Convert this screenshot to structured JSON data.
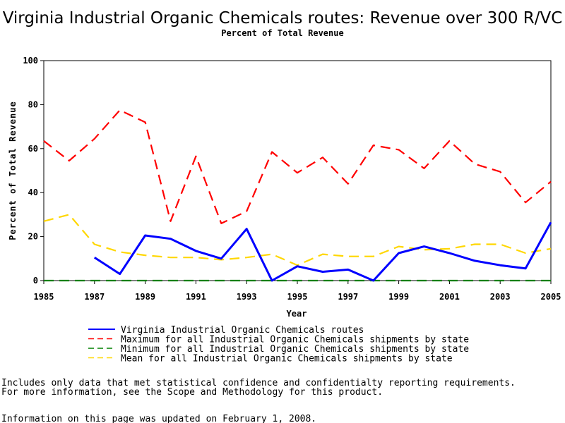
{
  "chart_data": {
    "type": "line",
    "title": "Virginia Industrial Organic Chemicals routes: Revenue over 300 R/VC",
    "subtitle": "Percent of Total Revenue",
    "xlabel": "Year",
    "ylabel": "Percent of Total Revenue",
    "xlim": [
      1985,
      2005
    ],
    "ylim": [
      0,
      100
    ],
    "x_ticks": [
      "1985",
      "1987",
      "1989",
      "1991",
      "1993",
      "1995",
      "1997",
      "1999",
      "2001",
      "2003",
      "2005"
    ],
    "y_ticks": [
      "0",
      "20",
      "40",
      "60",
      "80",
      "100"
    ],
    "grid": false,
    "legend_position": "bottom",
    "series": [
      {
        "name": "Virginia Industrial Organic Chemicals routes",
        "color": "#0000ff",
        "dash": "solid",
        "x": [
          1987,
          1988,
          1989,
          1990,
          1991,
          1992,
          1993,
          1994,
          1995,
          1996,
          1997,
          1998,
          1999,
          2000,
          2001,
          2002,
          2003,
          2004,
          2005
        ],
        "values": [
          10.5,
          3,
          20.5,
          19,
          13.5,
          10,
          23.5,
          0,
          6.5,
          4,
          5,
          0,
          12.5,
          15.5,
          12.5,
          9,
          7,
          5.5,
          26.5
        ]
      },
      {
        "name": "Maximum for all Industrial Organic Chemicals shipments by state",
        "color": "#ff0000",
        "dash": "dashed",
        "x": [
          1985,
          1986,
          1987,
          1988,
          1989,
          1990,
          1991,
          1992,
          1993,
          1994,
          1995,
          1996,
          1997,
          1998,
          1999,
          2000,
          2001,
          2002,
          2003,
          2004,
          2005
        ],
        "values": [
          63.5,
          54.5,
          64.5,
          77.5,
          72,
          27,
          56.5,
          26,
          31.5,
          58.5,
          49,
          56,
          44,
          61.5,
          59.5,
          51,
          63.5,
          53,
          49.5,
          35.5,
          45
        ]
      },
      {
        "name": "Minimum for all Industrial Organic Chemicals shipments by state",
        "color": "#008000",
        "dash": "dashed",
        "x": [
          1985,
          1986,
          1987,
          1988,
          1989,
          1990,
          1991,
          1992,
          1993,
          1994,
          1995,
          1996,
          1997,
          1998,
          1999,
          2000,
          2001,
          2002,
          2003,
          2004,
          2005
        ],
        "values": [
          0,
          0,
          0,
          0,
          0,
          0,
          0,
          0,
          0,
          0,
          0,
          0,
          0,
          0,
          0,
          0,
          0,
          0,
          0,
          0,
          0
        ]
      },
      {
        "name": "Mean for all Industrial Organic Chemicals shipments by state",
        "color": "#ffd700",
        "dash": "dashed",
        "x": [
          1985,
          1986,
          1987,
          1988,
          1989,
          1990,
          1991,
          1992,
          1993,
          1994,
          1995,
          1996,
          1997,
          1998,
          1999,
          2000,
          2001,
          2002,
          2003,
          2004,
          2005
        ],
        "values": [
          27,
          30,
          16.5,
          13,
          11.5,
          10.5,
          10.5,
          9.5,
          10.5,
          12,
          7,
          12,
          11,
          11,
          15.5,
          14,
          14.5,
          16.5,
          16.5,
          12.5,
          14.5
        ]
      }
    ]
  },
  "footnotes": [
    "Includes only data that met statistical confidence and confidentialty reporting requirements.",
    "For more information, see the Scope and Methodology for this product.",
    "Information on this page was updated on February 1, 2008."
  ]
}
